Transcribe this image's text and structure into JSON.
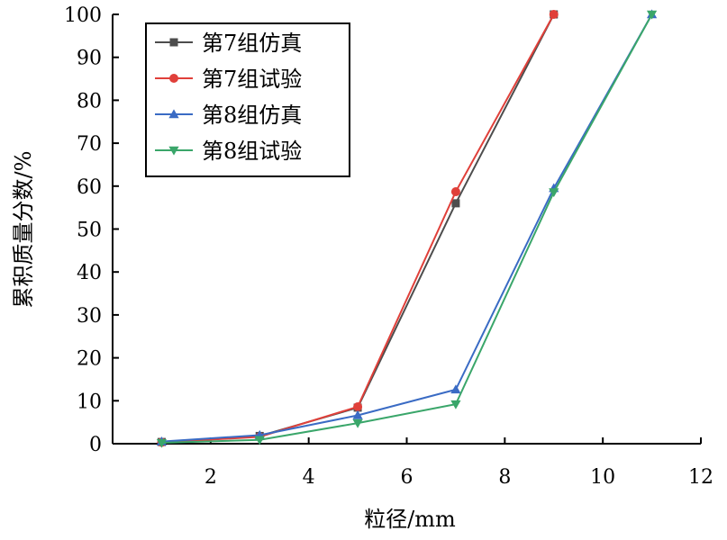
{
  "chart_data": {
    "type": "line",
    "xlabel": "粒径/mm",
    "ylabel": "累积质量分数/%",
    "xlim": [
      0,
      12
    ],
    "ylim": [
      0,
      100
    ],
    "xticks": [
      2,
      4,
      6,
      8,
      10,
      12
    ],
    "yticks": [
      0,
      10,
      20,
      30,
      40,
      50,
      60,
      70,
      80,
      90,
      100
    ],
    "grid": false,
    "legend_position": "top-left",
    "series": [
      {
        "name": "第7组仿真",
        "color": "#4d4d4d",
        "marker": "square",
        "x": [
          1,
          3,
          5,
          7,
          9
        ],
        "y": [
          0.4,
          1.8,
          8.4,
          56,
          100
        ]
      },
      {
        "name": "第7组试验",
        "color": "#e0403a",
        "marker": "circle",
        "x": [
          1,
          3,
          5,
          7,
          9
        ],
        "y": [
          0.3,
          1.6,
          8.6,
          58.7,
          100
        ]
      },
      {
        "name": "第8组仿真",
        "color": "#3a6bc4",
        "marker": "triangle-up",
        "x": [
          1,
          3,
          5,
          7,
          9,
          11
        ],
        "y": [
          0.5,
          2.0,
          6.6,
          12.6,
          59.5,
          100
        ]
      },
      {
        "name": "第8组试验",
        "color": "#3aa66a",
        "marker": "triangle-down",
        "x": [
          1,
          3,
          5,
          7,
          9,
          11
        ],
        "y": [
          0.2,
          0.9,
          4.8,
          9.2,
          58.6,
          100
        ]
      }
    ]
  }
}
